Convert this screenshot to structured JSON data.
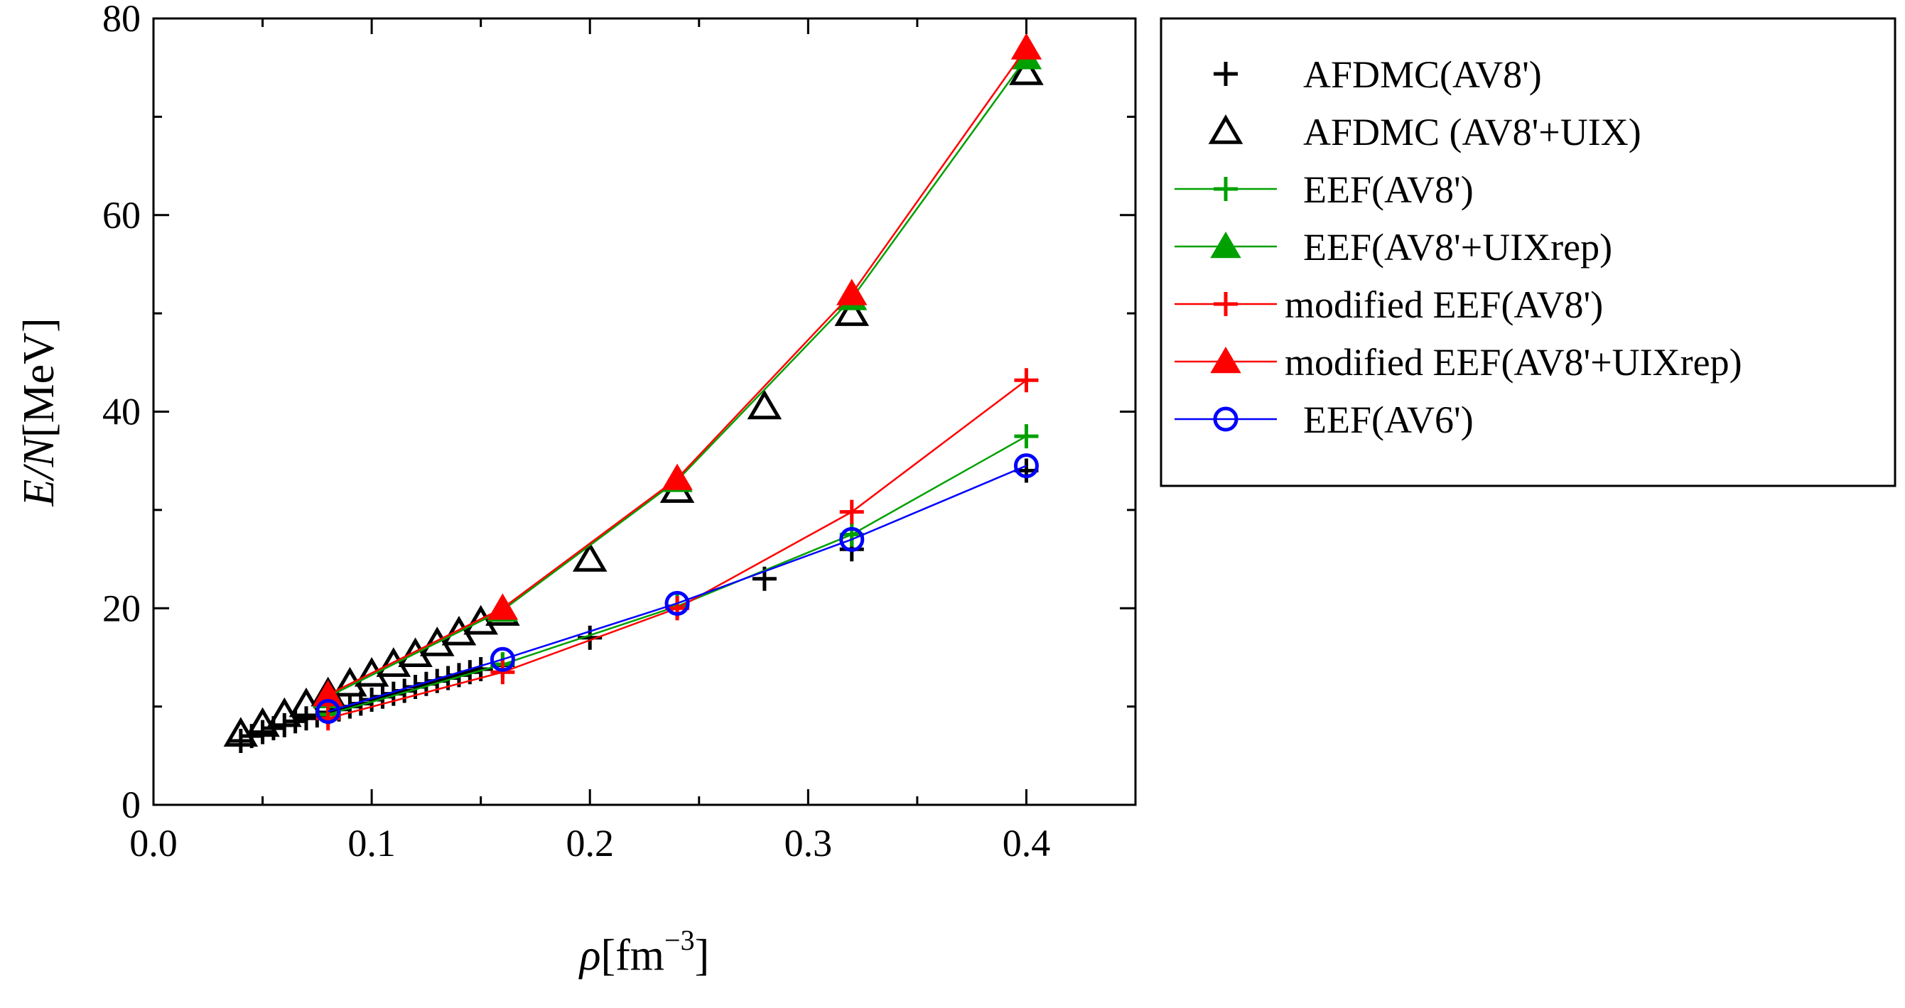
{
  "chart_data": {
    "type": "line",
    "xlabel": {
      "symbol": "ρ",
      "unit": "[fm",
      "exponent": "−3",
      "close": "]"
    },
    "ylabel": {
      "symbol": "E/N",
      "unit": "[MeV]"
    },
    "xlim": [
      0.0,
      0.45
    ],
    "ylim": [
      0,
      80
    ],
    "xticks": [
      0.0,
      0.1,
      0.2,
      0.3,
      0.4
    ],
    "xtick_labels": [
      "0.0",
      "0.1",
      "0.2",
      "0.3",
      "0.4"
    ],
    "yticks": [
      0,
      20,
      40,
      60,
      80
    ],
    "ytick_labels": [
      "0",
      "20",
      "40",
      "60",
      "80"
    ],
    "legend_position": "outside-right-top",
    "series": [
      {
        "name": "AFDMC(AV8')",
        "color": "#000000",
        "marker": "plus",
        "line": false,
        "x": [
          0.04,
          0.045,
          0.05,
          0.055,
          0.06,
          0.065,
          0.07,
          0.075,
          0.08,
          0.085,
          0.09,
          0.095,
          0.1,
          0.105,
          0.11,
          0.115,
          0.12,
          0.125,
          0.13,
          0.135,
          0.14,
          0.145,
          0.15,
          0.16,
          0.2,
          0.24,
          0.28,
          0.32,
          0.4
        ],
        "y": [
          6.5,
          7.0,
          7.4,
          7.8,
          8.1,
          8.5,
          8.8,
          9.1,
          9.4,
          9.7,
          10.0,
          10.3,
          10.7,
          11.0,
          11.3,
          11.6,
          12.0,
          12.3,
          12.6,
          12.9,
          13.2,
          13.5,
          13.8,
          14.2,
          17.0,
          20.2,
          23.0,
          26.0,
          34.0
        ]
      },
      {
        "name": "AFDMC (AV8'+UIX)",
        "color": "#000000",
        "marker": "triangle-open",
        "line": false,
        "x": [
          0.04,
          0.05,
          0.06,
          0.07,
          0.08,
          0.09,
          0.1,
          0.11,
          0.12,
          0.13,
          0.14,
          0.15,
          0.16,
          0.2,
          0.24,
          0.28,
          0.32,
          0.4
        ],
        "y": [
          7.2,
          8.2,
          9.2,
          10.2,
          11.3,
          12.3,
          13.3,
          14.3,
          15.3,
          16.4,
          17.5,
          18.6,
          19.5,
          25.0,
          32.0,
          40.5,
          50.0,
          74.5
        ]
      },
      {
        "name": "EEF(AV8')",
        "color": "#00a000",
        "marker": "plus",
        "line": true,
        "x": [
          0.08,
          0.16,
          0.24,
          0.32,
          0.4
        ],
        "y": [
          9.2,
          14.3,
          20.2,
          27.5,
          37.5
        ]
      },
      {
        "name": "EEF(AV8'+UIXrep)",
        "color": "#00a000",
        "marker": "triangle-filled",
        "line": true,
        "x": [
          0.08,
          0.16,
          0.24,
          0.32,
          0.4
        ],
        "y": [
          11.0,
          19.8,
          33.0,
          51.5,
          76.0
        ]
      },
      {
        "name": "modified EEF(AV8')",
        "color": "#ff0000",
        "marker": "plus",
        "line": true,
        "x": [
          0.08,
          0.16,
          0.24,
          0.32,
          0.4
        ],
        "y": [
          8.8,
          13.5,
          20.0,
          29.8,
          43.2
        ]
      },
      {
        "name": "modified EEF(AV8'+UIXrep)",
        "color": "#ff0000",
        "marker": "triangle-filled",
        "line": true,
        "x": [
          0.08,
          0.16,
          0.24,
          0.32,
          0.4
        ],
        "y": [
          11.2,
          20.0,
          33.2,
          52.0,
          77.0
        ]
      },
      {
        "name": "EEF(AV6')",
        "color": "#0000ff",
        "marker": "circle-open",
        "line": true,
        "x": [
          0.08,
          0.16,
          0.24,
          0.32,
          0.4
        ],
        "y": [
          9.5,
          14.8,
          20.5,
          27.0,
          34.5
        ]
      }
    ]
  }
}
